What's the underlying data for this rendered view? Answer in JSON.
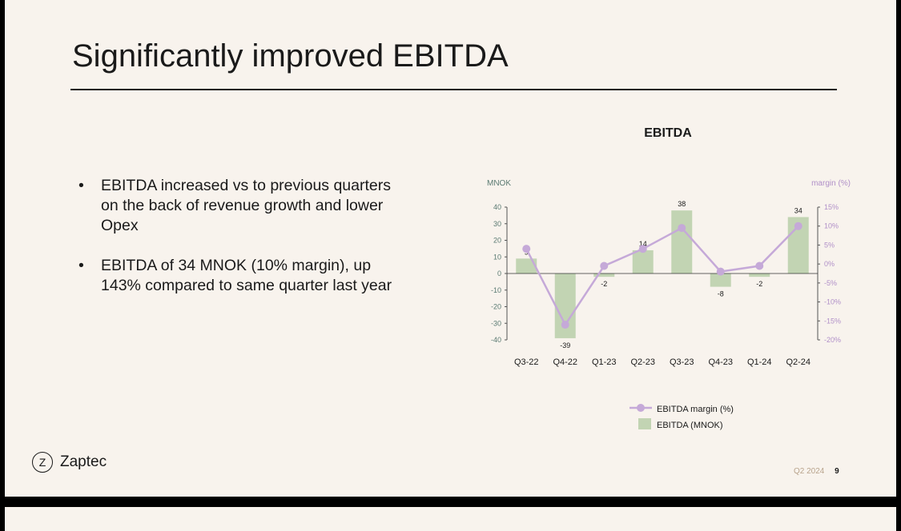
{
  "slide": {
    "title": "Significantly improved EBITDA",
    "bullets": [
      "EBITDA increased vs to previous quarters on the back of revenue growth and lower Opex",
      "EBITDA of 34 MNOK (10% margin), up 143% compared to same quarter last year"
    ],
    "logo_text": "Zaptec",
    "logo_icon": "zaptec-logo-icon",
    "footer_period": "Q2 2024",
    "page_number": "9"
  },
  "chart_data": {
    "type": "bar",
    "title": "EBITDA",
    "categories": [
      "Q3-22",
      "Q4-22",
      "Q1-23",
      "Q2-23",
      "Q3-23",
      "Q4-23",
      "Q1-24",
      "Q2-24"
    ],
    "series": [
      {
        "name": "EBITDA (MNOK)",
        "type": "bar",
        "axis": "left",
        "values": [
          9,
          -39,
          -2,
          14,
          38,
          -8,
          -2,
          34
        ],
        "data_labels": [
          "9",
          "-39",
          "-2",
          "14",
          "38",
          "-8",
          "-2",
          "34"
        ],
        "color": "#c2d4b3"
      },
      {
        "name": "EBITDA margin (%)",
        "type": "line",
        "axis": "right",
        "values": [
          4,
          -16,
          -0.5,
          4,
          9.5,
          -2,
          -0.5,
          10
        ],
        "color": "#c5a9d8"
      }
    ],
    "y_left": {
      "label": "MNOK",
      "min": -40,
      "max": 40,
      "ticks": [
        "40",
        "30",
        "20",
        "10",
        "0",
        "-10",
        "-20",
        "-30",
        "-40"
      ]
    },
    "y_right": {
      "label": "margin (%)",
      "min": -20,
      "max": 15,
      "ticks": [
        "15%",
        "10%",
        "5%",
        "0%",
        "-5%",
        "-10%",
        "-15%",
        "-20%"
      ]
    },
    "legend_position": "bottom",
    "grid": false,
    "colors": {
      "axis_text": "#5a7a72",
      "right_axis_text": "#b08fc8"
    }
  }
}
